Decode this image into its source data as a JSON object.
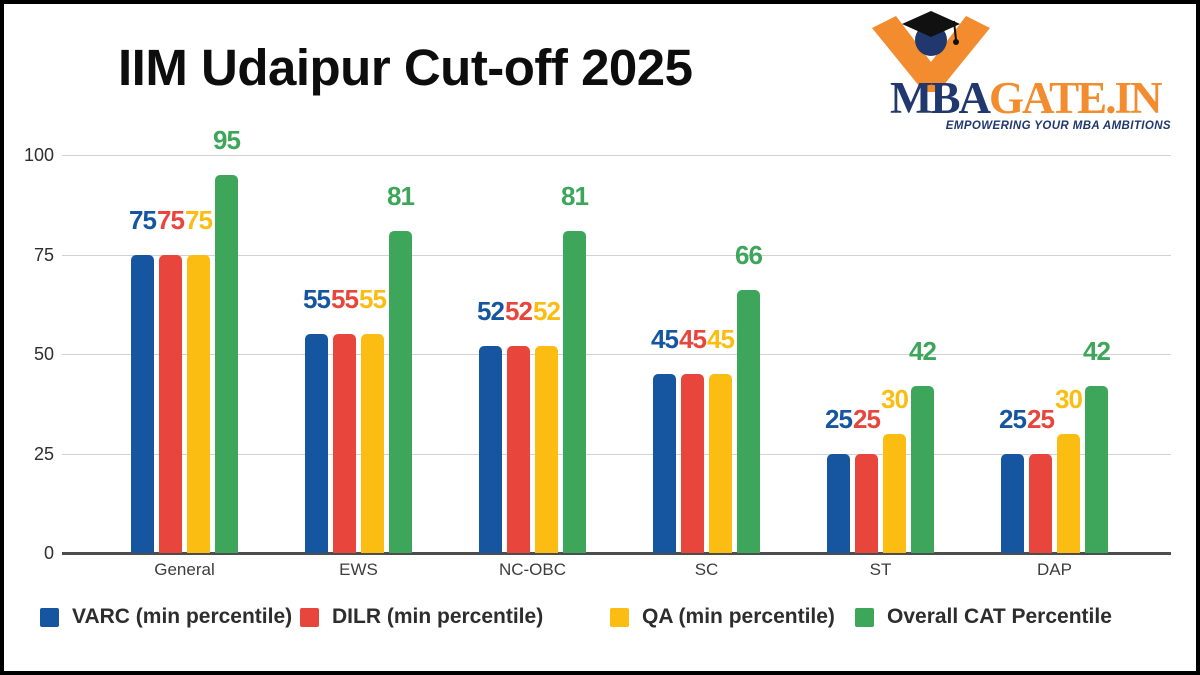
{
  "header": {
    "title": "IIM Udaipur Cut-off 2025"
  },
  "logo": {
    "brand_prefix": "MBA",
    "brand_suffix": "GATE.IN",
    "tagline": "EMPOWERING YOUR MBA AMBITIONS",
    "colors": {
      "navy": "#21386E",
      "orange": "#F28C2E"
    }
  },
  "chart_data": {
    "type": "bar",
    "title": "IIM Udaipur Cut-off 2025",
    "categories": [
      "General",
      "EWS",
      "NC-OBC",
      "SC",
      "ST",
      "DAP"
    ],
    "series": [
      {
        "name": "VARC (min percentile)",
        "color": "#1656A0",
        "values": [
          75,
          55,
          52,
          45,
          25,
          25
        ]
      },
      {
        "name": "DILR (min percentile)",
        "color": "#E8453C",
        "values": [
          75,
          55,
          52,
          45,
          25,
          25
        ]
      },
      {
        "name": "QA (min percentile)",
        "color": "#FBBD11",
        "values": [
          75,
          55,
          52,
          45,
          30,
          30
        ]
      },
      {
        "name": "Overall CAT Percentile",
        "color": "#3DA65B",
        "values": [
          95,
          81,
          81,
          66,
          42,
          42
        ]
      }
    ],
    "yticks": [
      0,
      25,
      50,
      75,
      100
    ],
    "ylim": [
      0,
      100
    ],
    "grid": true,
    "legend_position": "bottom",
    "value_labels": true
  }
}
